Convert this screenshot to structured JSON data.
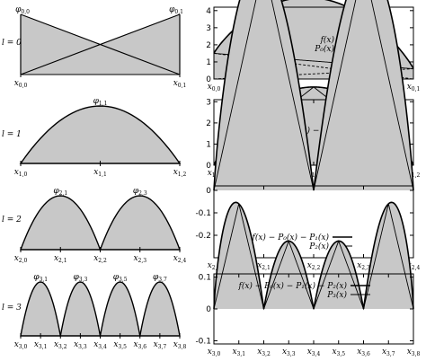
{
  "level_labels": [
    "l = 0",
    "l = 1",
    "l = 2",
    "l = 3"
  ],
  "left_panels": [
    {
      "level": 0,
      "phi_labels": [
        {
          "base": "φ",
          "sub": "0,0"
        },
        {
          "base": "φ",
          "sub": "0,1"
        }
      ],
      "x_labels": [
        {
          "base": "x",
          "sub": "0,0"
        },
        {
          "base": "x",
          "sub": "0,1"
        }
      ]
    },
    {
      "level": 1,
      "phi_labels": [
        {
          "base": "φ",
          "sub": "1,1"
        }
      ],
      "x_labels": [
        {
          "base": "x",
          "sub": "1,0"
        },
        {
          "base": "x",
          "sub": "1,1"
        },
        {
          "base": "x",
          "sub": "1,2"
        }
      ]
    },
    {
      "level": 2,
      "phi_labels": [
        {
          "base": "φ",
          "sub": "2,1"
        },
        {
          "base": "φ",
          "sub": "2,3"
        }
      ],
      "x_labels": [
        {
          "base": "x",
          "sub": "2,0"
        },
        {
          "base": "x",
          "sub": "2,1"
        },
        {
          "base": "x",
          "sub": "2,2"
        },
        {
          "base": "x",
          "sub": "2,3"
        },
        {
          "base": "x",
          "sub": "2,4"
        }
      ]
    },
    {
      "level": 3,
      "phi_labels": [
        {
          "base": "φ",
          "sub": "3,1"
        },
        {
          "base": "φ",
          "sub": "3,3"
        },
        {
          "base": "φ",
          "sub": "3,5"
        },
        {
          "base": "φ",
          "sub": "3,7"
        }
      ],
      "x_labels": [
        {
          "base": "x",
          "sub": "3,0"
        },
        {
          "base": "x",
          "sub": "3,1"
        },
        {
          "base": "x",
          "sub": "3,2"
        },
        {
          "base": "x",
          "sub": "3,3"
        },
        {
          "base": "x",
          "sub": "3,4"
        },
        {
          "base": "x",
          "sub": "3,5"
        },
        {
          "base": "x",
          "sub": "3,6"
        },
        {
          "base": "x",
          "sub": "3,7"
        },
        {
          "base": "x",
          "sub": "3,8"
        }
      ]
    }
  ],
  "chart_data": [
    {
      "type": "line",
      "level": 0,
      "ylim": [
        0,
        4.2
      ],
      "yticks": [
        "0",
        "1",
        "2",
        "3",
        "4"
      ],
      "x_labels": [
        {
          "base": "x",
          "sub": "0,0"
        },
        {
          "base": "x",
          "sub": "0,1"
        }
      ],
      "series": [
        {
          "name": "f(x)",
          "function": "16x²(1−x)²·... peak 4 at x=0.5"
        },
        {
          "name": "P₀(x)",
          "values_at_ends": [
            1.5,
            0.6
          ]
        }
      ],
      "legend": [
        {
          "label": "f(x)"
        },
        {
          "label": "P₀(x)"
        }
      ]
    },
    {
      "type": "line",
      "level": 1,
      "ylim": [
        0,
        3.1
      ],
      "yticks": [
        "0",
        "1",
        "2",
        "3"
      ],
      "x_labels": [
        {
          "base": "x",
          "sub": "1,0"
        },
        {
          "base": "x",
          "sub": "1,1"
        },
        {
          "base": "x",
          "sub": "1,2"
        }
      ],
      "legend": [
        {
          "label": "f(x) − P₀(x)"
        },
        {
          "label": "P₁(x)"
        }
      ]
    },
    {
      "type": "line",
      "level": 2,
      "ylim": [
        -0.3,
        0.02
      ],
      "yticks": [
        "0",
        "-0.1",
        "-0.2"
      ],
      "x_labels": [
        {
          "base": "x",
          "sub": "2,0"
        },
        {
          "base": "x",
          "sub": "2,1"
        },
        {
          "base": "x",
          "sub": "2,2"
        },
        {
          "base": "x",
          "sub": "2,3"
        },
        {
          "base": "x",
          "sub": "2,4"
        }
      ],
      "legend": [
        {
          "label": "f(x) − P₀(x) − P₁(x)"
        },
        {
          "label": "P₂(x)"
        }
      ]
    },
    {
      "type": "line",
      "level": 3,
      "ylim": [
        -0.11,
        0.11
      ],
      "yticks": [
        "0.1",
        "0",
        "-0.1"
      ],
      "x_labels": [
        {
          "base": "x",
          "sub": "3,0"
        },
        {
          "base": "x",
          "sub": "3,1"
        },
        {
          "base": "x",
          "sub": "3,2"
        },
        {
          "base": "x",
          "sub": "3,3"
        },
        {
          "base": "x",
          "sub": "3,4"
        },
        {
          "base": "x",
          "sub": "3,5"
        },
        {
          "base": "x",
          "sub": "3,6"
        },
        {
          "base": "x",
          "sub": "3,7"
        },
        {
          "base": "x",
          "sub": "3,8"
        }
      ],
      "legend": [
        {
          "label": "f(x) − P₀(x) − P₁(x) − P₂(x)"
        },
        {
          "label": "P₃(x)"
        }
      ]
    }
  ],
  "colors": {
    "fill": "#c8c8c8",
    "line": "#000000"
  }
}
